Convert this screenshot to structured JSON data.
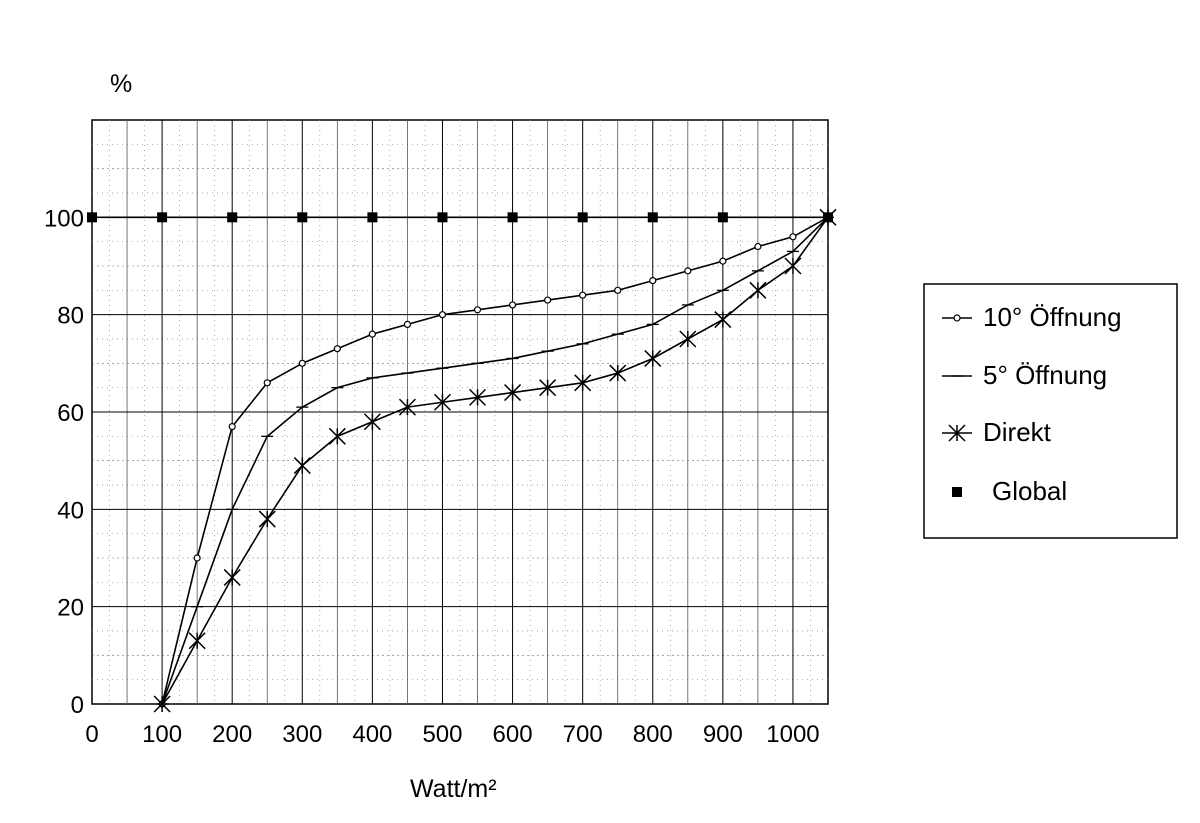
{
  "chart_data": {
    "type": "line",
    "title": "",
    "xlabel": "Watt/m²",
    "ylabel": "%",
    "xlim": [
      0,
      1050
    ],
    "ylim": [
      0,
      120
    ],
    "x_ticks": [
      "0",
      "100",
      "200",
      "300",
      "400",
      "500",
      "600",
      "700",
      "800",
      "900",
      "1000"
    ],
    "y_ticks": [
      "0",
      "20",
      "40",
      "60",
      "80",
      "100"
    ],
    "grid": true,
    "legend_position": "right",
    "series": [
      {
        "name": "10° Öffnung",
        "marker": "open-circle",
        "x": [
          100,
          150,
          200,
          250,
          300,
          350,
          400,
          450,
          500,
          550,
          600,
          650,
          700,
          750,
          800,
          850,
          900,
          950,
          1000,
          1050
        ],
        "y": [
          0,
          30,
          57,
          66,
          70,
          73,
          76,
          78,
          80,
          81,
          82,
          83,
          84,
          85,
          87,
          89,
          91,
          94,
          96,
          100
        ]
      },
      {
        "name": "5° Öffnung",
        "marker": "dash",
        "x": [
          100,
          150,
          200,
          250,
          300,
          350,
          400,
          450,
          500,
          550,
          600,
          650,
          700,
          750,
          800,
          850,
          900,
          950,
          1000,
          1050
        ],
        "y": [
          0,
          20,
          40,
          55,
          61,
          65,
          67,
          68,
          69,
          70,
          71,
          72.5,
          74,
          76,
          78,
          82,
          85,
          89,
          93,
          100
        ]
      },
      {
        "name": "Direkt",
        "marker": "asterisk",
        "x": [
          100,
          150,
          200,
          250,
          300,
          350,
          400,
          450,
          500,
          550,
          600,
          650,
          700,
          750,
          800,
          850,
          900,
          950,
          1000,
          1050
        ],
        "y": [
          0,
          13,
          26,
          38,
          49,
          55,
          58,
          61,
          62,
          63,
          64,
          65,
          66,
          68,
          71,
          75,
          79,
          85,
          90,
          100
        ]
      },
      {
        "name": "Global",
        "marker": "filled-square",
        "x": [
          0,
          100,
          200,
          300,
          400,
          500,
          600,
          700,
          800,
          900,
          1050
        ],
        "y": [
          100,
          100,
          100,
          100,
          100,
          100,
          100,
          100,
          100,
          100,
          100
        ]
      }
    ]
  }
}
